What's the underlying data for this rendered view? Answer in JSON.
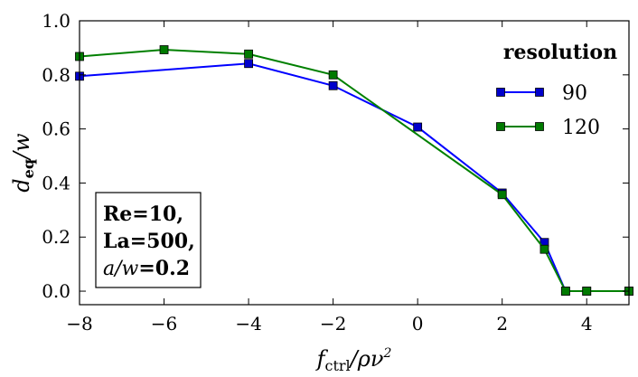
{
  "chart_data": {
    "type": "line",
    "xlabel": "f_ctrl/ρν²",
    "ylabel": "d_eq/w",
    "xlim": [
      -8,
      5
    ],
    "ylim": [
      -0.05,
      1.0
    ],
    "xticks": [
      -8,
      -6,
      -4,
      -2,
      0,
      2,
      4
    ],
    "yticks": [
      0.0,
      0.2,
      0.4,
      0.6,
      0.8,
      1.0
    ],
    "x_tick_labels": [
      "−8",
      "−6",
      "−4",
      "−2",
      "0",
      "2",
      "4"
    ],
    "y_tick_labels": [
      "0.0",
      "0.2",
      "0.4",
      "0.6",
      "0.8",
      "1.0"
    ],
    "legend": {
      "title": "resolution",
      "position": "top-right"
    },
    "series": [
      {
        "name": "90",
        "color": "#0000ff",
        "marker_fill": "#0000cc",
        "x": [
          -8,
          -4,
          -2,
          0,
          2,
          3,
          3.5,
          4,
          5
        ],
        "y": [
          0.795,
          0.842,
          0.76,
          0.607,
          0.363,
          0.18,
          0.0,
          0.0,
          0.0
        ]
      },
      {
        "name": "120",
        "color": "#008000",
        "marker_fill": "#007a00",
        "x": [
          -8,
          -6,
          -4,
          -2,
          2,
          3,
          3.5,
          4,
          5
        ],
        "y": [
          0.868,
          0.893,
          0.877,
          0.8,
          0.357,
          0.155,
          0.0,
          0.0,
          0.0
        ]
      }
    ],
    "annotation": [
      "Re=10,",
      "La=500,",
      "a/w=0.2"
    ]
  }
}
